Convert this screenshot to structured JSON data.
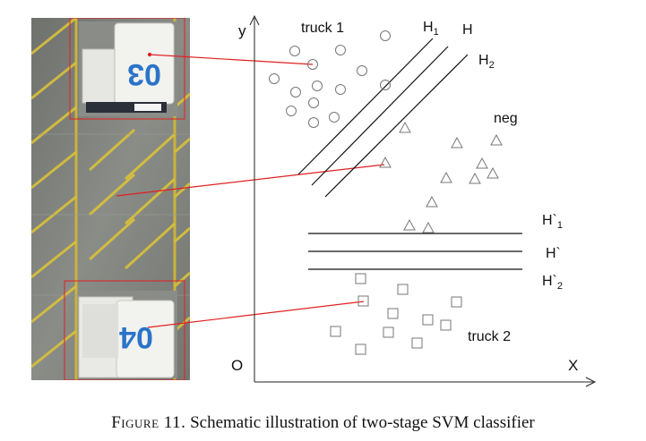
{
  "axes": {
    "y_label": "y",
    "x_label": "X",
    "origin_label": "O"
  },
  "classes": {
    "truck1": "truck 1",
    "neg": "neg",
    "truck2": "truck 2"
  },
  "hyperplanes": {
    "h1": {
      "base": "H",
      "sub": "1"
    },
    "h": {
      "base": "H",
      "sub": ""
    },
    "h2": {
      "base": "H",
      "sub": "2"
    },
    "hp1": {
      "base": "H`",
      "sub": "1"
    },
    "hp": {
      "base": "H`",
      "sub": ""
    },
    "hp2": {
      "base": "H`",
      "sub": "2"
    }
  },
  "truck_numbers": {
    "top": "03",
    "bottom": "04"
  },
  "caption": {
    "label": "Figure 11.",
    "text": "Schematic illustration of two-stage SVM classifier"
  },
  "colors": {
    "link": "#e02020",
    "asphalt": "#7e807c",
    "stripe": "#d9c23a",
    "truck_number": "#2a74c8"
  }
}
